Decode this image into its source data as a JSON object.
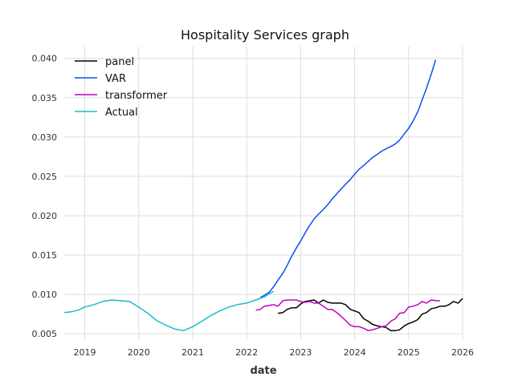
{
  "chart_data": {
    "type": "line",
    "title": "Hospitality Services graph",
    "xlabel": "date",
    "ylabel": "",
    "xlim": [
      2018.62,
      2026.0
    ],
    "ylim": [
      0.0042,
      0.0415
    ],
    "x_ticks": [
      2019,
      2020,
      2021,
      2022,
      2023,
      2024,
      2025,
      2026
    ],
    "x_tick_labels": [
      "2019",
      "2020",
      "2021",
      "2022",
      "2023",
      "2024",
      "2025",
      "2026"
    ],
    "y_ticks": [
      0.005,
      0.01,
      0.015,
      0.02,
      0.025,
      0.03,
      0.035,
      0.04
    ],
    "y_tick_labels": [
      "0.005",
      "0.010",
      "0.015",
      "0.020",
      "0.025",
      "0.030",
      "0.035",
      "0.040"
    ],
    "grid": true,
    "legend_position": "top-left",
    "series": [
      {
        "name": "panel",
        "color": "#000000",
        "points": [
          [
            2022.58,
            0.0076
          ],
          [
            2022.67,
            0.0077
          ],
          [
            2022.75,
            0.0081
          ],
          [
            2022.83,
            0.0083
          ],
          [
            2022.92,
            0.0083
          ],
          [
            2023.0,
            0.0088
          ],
          [
            2023.08,
            0.0091
          ],
          [
            2023.17,
            0.0092
          ],
          [
            2023.25,
            0.0093
          ],
          [
            2023.33,
            0.0089
          ],
          [
            2023.42,
            0.0093
          ],
          [
            2023.5,
            0.009
          ],
          [
            2023.58,
            0.0089
          ],
          [
            2023.67,
            0.0089
          ],
          [
            2023.75,
            0.0089
          ],
          [
            2023.83,
            0.0087
          ],
          [
            2023.92,
            0.0081
          ],
          [
            2024.0,
            0.0079
          ],
          [
            2024.08,
            0.0077
          ],
          [
            2024.17,
            0.0069
          ],
          [
            2024.25,
            0.0066
          ],
          [
            2024.33,
            0.0062
          ],
          [
            2024.42,
            0.006
          ],
          [
            2024.5,
            0.0059
          ],
          [
            2024.58,
            0.0058
          ],
          [
            2024.67,
            0.0054
          ],
          [
            2024.75,
            0.0054
          ],
          [
            2024.83,
            0.0055
          ],
          [
            2024.92,
            0.006
          ],
          [
            2025.0,
            0.0063
          ],
          [
            2025.08,
            0.0065
          ],
          [
            2025.17,
            0.0068
          ],
          [
            2025.25,
            0.0075
          ],
          [
            2025.33,
            0.0077
          ],
          [
            2025.42,
            0.0082
          ],
          [
            2025.5,
            0.0083
          ],
          [
            2025.58,
            0.0085
          ],
          [
            2025.67,
            0.0085
          ],
          [
            2025.75,
            0.0087
          ],
          [
            2025.83,
            0.0091
          ],
          [
            2025.92,
            0.0089
          ],
          [
            2026.0,
            0.0095
          ]
        ]
      },
      {
        "name": "VAR",
        "color": "#0a4ff0",
        "points": [
          [
            2022.25,
            0.0096
          ],
          [
            2022.33,
            0.0099
          ],
          [
            2022.42,
            0.0103
          ],
          [
            2022.5,
            0.011
          ],
          [
            2022.58,
            0.0118
          ],
          [
            2022.67,
            0.0127
          ],
          [
            2022.75,
            0.0137
          ],
          [
            2022.83,
            0.0148
          ],
          [
            2022.92,
            0.0159
          ],
          [
            2023.0,
            0.0168
          ],
          [
            2023.08,
            0.0178
          ],
          [
            2023.17,
            0.0188
          ],
          [
            2023.25,
            0.0196
          ],
          [
            2023.33,
            0.0202
          ],
          [
            2023.42,
            0.0208
          ],
          [
            2023.5,
            0.0214
          ],
          [
            2023.58,
            0.0221
          ],
          [
            2023.67,
            0.0228
          ],
          [
            2023.75,
            0.0234
          ],
          [
            2023.83,
            0.024
          ],
          [
            2023.92,
            0.0246
          ],
          [
            2024.0,
            0.0253
          ],
          [
            2024.08,
            0.0259
          ],
          [
            2024.17,
            0.0264
          ],
          [
            2024.25,
            0.0269
          ],
          [
            2024.33,
            0.0274
          ],
          [
            2024.42,
            0.0278
          ],
          [
            2024.5,
            0.0282
          ],
          [
            2024.58,
            0.0285
          ],
          [
            2024.67,
            0.0288
          ],
          [
            2024.75,
            0.0291
          ],
          [
            2024.83,
            0.0296
          ],
          [
            2024.92,
            0.0304
          ],
          [
            2025.0,
            0.0311
          ],
          [
            2025.08,
            0.032
          ],
          [
            2025.17,
            0.0332
          ],
          [
            2025.25,
            0.0347
          ],
          [
            2025.33,
            0.0362
          ],
          [
            2025.42,
            0.038
          ],
          [
            2025.5,
            0.0398
          ]
        ]
      },
      {
        "name": "transformer",
        "color": "#bf00bf",
        "points": [
          [
            2022.17,
            0.008
          ],
          [
            2022.25,
            0.0081
          ],
          [
            2022.33,
            0.0085
          ],
          [
            2022.42,
            0.0086
          ],
          [
            2022.5,
            0.0087
          ],
          [
            2022.58,
            0.0085
          ],
          [
            2022.67,
            0.0092
          ],
          [
            2022.75,
            0.0093
          ],
          [
            2022.83,
            0.0093
          ],
          [
            2022.92,
            0.0093
          ],
          [
            2023.0,
            0.0091
          ],
          [
            2023.08,
            0.009
          ],
          [
            2023.17,
            0.0091
          ],
          [
            2023.25,
            0.0089
          ],
          [
            2023.33,
            0.0089
          ],
          [
            2023.42,
            0.0085
          ],
          [
            2023.5,
            0.0081
          ],
          [
            2023.58,
            0.0081
          ],
          [
            2023.67,
            0.0077
          ],
          [
            2023.75,
            0.0072
          ],
          [
            2023.83,
            0.0067
          ],
          [
            2023.92,
            0.0061
          ],
          [
            2024.0,
            0.0059
          ],
          [
            2024.08,
            0.0059
          ],
          [
            2024.17,
            0.0057
          ],
          [
            2024.25,
            0.0054
          ],
          [
            2024.33,
            0.0055
          ],
          [
            2024.42,
            0.0057
          ],
          [
            2024.5,
            0.0059
          ],
          [
            2024.58,
            0.006
          ],
          [
            2024.67,
            0.0066
          ],
          [
            2024.75,
            0.0069
          ],
          [
            2024.83,
            0.0076
          ],
          [
            2024.92,
            0.0077
          ],
          [
            2025.0,
            0.0084
          ],
          [
            2025.08,
            0.0085
          ],
          [
            2025.17,
            0.0087
          ],
          [
            2025.25,
            0.0091
          ],
          [
            2025.33,
            0.0089
          ],
          [
            2025.42,
            0.0093
          ],
          [
            2025.5,
            0.0092
          ],
          [
            2025.58,
            0.0092
          ]
        ]
      },
      {
        "name": "Actual",
        "color": "#17becf",
        "points": [
          [
            2018.62,
            0.0077
          ],
          [
            2018.75,
            0.0078
          ],
          [
            2018.88,
            0.008
          ],
          [
            2019.0,
            0.0084
          ],
          [
            2019.17,
            0.0087
          ],
          [
            2019.33,
            0.0091
          ],
          [
            2019.5,
            0.0093
          ],
          [
            2019.67,
            0.0092
          ],
          [
            2019.83,
            0.0091
          ],
          [
            2020.0,
            0.0084
          ],
          [
            2020.17,
            0.0076
          ],
          [
            2020.33,
            0.0067
          ],
          [
            2020.5,
            0.0061
          ],
          [
            2020.67,
            0.0056
          ],
          [
            2020.83,
            0.0054
          ],
          [
            2021.0,
            0.0059
          ],
          [
            2021.17,
            0.0066
          ],
          [
            2021.33,
            0.0073
          ],
          [
            2021.5,
            0.0079
          ],
          [
            2021.67,
            0.0084
          ],
          [
            2021.83,
            0.0087
          ],
          [
            2022.0,
            0.0089
          ],
          [
            2022.17,
            0.0093
          ],
          [
            2022.33,
            0.0097
          ],
          [
            2022.5,
            0.0104
          ]
        ]
      }
    ]
  }
}
